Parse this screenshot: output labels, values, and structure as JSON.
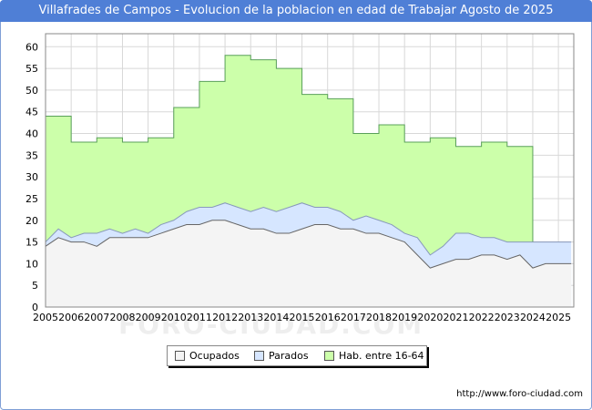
{
  "chart_data": {
    "type": "area",
    "title": "Villafrades de Campos - Evolucion de la poblacion en edad de Trabajar Agosto de 2025",
    "xlabel": "",
    "ylabel": "",
    "xlim": [
      2005,
      2025.6
    ],
    "ylim": [
      0,
      63
    ],
    "yticks": [
      0,
      5,
      10,
      15,
      20,
      25,
      30,
      35,
      40,
      45,
      50,
      55,
      60
    ],
    "xticks": [
      "2005",
      "2006",
      "2007",
      "2008",
      "2009",
      "2010",
      "2011",
      "2012",
      "2013",
      "2014",
      "2015",
      "2016",
      "2017",
      "2018",
      "2019",
      "2020",
      "2021",
      "2022",
      "2023",
      "2024",
      "2025"
    ],
    "grid": true,
    "legend_position": "bottom-center",
    "series": [
      {
        "name": "Hab. entre 16-64",
        "color": "#ccffaa",
        "stroke": "#5aa05a",
        "step": true,
        "x": [
          2005,
          2006,
          2007,
          2008,
          2009,
          2010,
          2011,
          2012,
          2013,
          2014,
          2015,
          2016,
          2017,
          2018,
          2019,
          2020,
          2021,
          2022,
          2023,
          2024
        ],
        "values": [
          44,
          38,
          39,
          38,
          39,
          46,
          52,
          58,
          57,
          55,
          49,
          48,
          40,
          42,
          38,
          39,
          37,
          38,
          37,
          0
        ]
      },
      {
        "name": "Parados",
        "color": "#d6e6ff",
        "stroke": "#8899bb",
        "x": [
          2005,
          2005.5,
          2006,
          2006.5,
          2007,
          2007.5,
          2008,
          2008.5,
          2009,
          2009.5,
          2010,
          2010.5,
          2011,
          2011.5,
          2012,
          2012.5,
          2013,
          2013.5,
          2014,
          2014.5,
          2015,
          2015.5,
          2016,
          2016.5,
          2017,
          2017.5,
          2018,
          2018.5,
          2019,
          2019.5,
          2020,
          2020.5,
          2021,
          2021.5,
          2022,
          2022.5,
          2023,
          2023.5,
          2024,
          2024.5,
          2025,
          2025.5
        ],
        "values": [
          15,
          18,
          16,
          17,
          17,
          18,
          17,
          18,
          17,
          19,
          20,
          22,
          23,
          23,
          24,
          23,
          22,
          23,
          22,
          23,
          24,
          23,
          23,
          22,
          20,
          21,
          20,
          19,
          17,
          16,
          12,
          14,
          17,
          17,
          16,
          16,
          15,
          15,
          15,
          15,
          15,
          15
        ]
      },
      {
        "name": "Ocupados",
        "color": "#f4f4f4",
        "stroke": "#666666",
        "x": [
          2005,
          2005.5,
          2006,
          2006.5,
          2007,
          2007.5,
          2008,
          2008.5,
          2009,
          2009.5,
          2010,
          2010.5,
          2011,
          2011.5,
          2012,
          2012.5,
          2013,
          2013.5,
          2014,
          2014.5,
          2015,
          2015.5,
          2016,
          2016.5,
          2017,
          2017.5,
          2018,
          2018.5,
          2019,
          2019.5,
          2020,
          2020.5,
          2021,
          2021.5,
          2022,
          2022.5,
          2023,
          2023.5,
          2024,
          2024.5,
          2025,
          2025.5
        ],
        "values": [
          14,
          16,
          15,
          15,
          14,
          16,
          16,
          16,
          16,
          17,
          18,
          19,
          19,
          20,
          20,
          19,
          18,
          18,
          17,
          17,
          18,
          19,
          19,
          18,
          18,
          17,
          17,
          16,
          15,
          12,
          9,
          10,
          11,
          11,
          12,
          12,
          11,
          12,
          9,
          10,
          10,
          10
        ]
      }
    ]
  },
  "legend": {
    "items": [
      {
        "label": "Ocupados",
        "color": "#f4f4f4"
      },
      {
        "label": "Parados",
        "color": "#d6e6ff"
      },
      {
        "label": "Hab. entre 16-64",
        "color": "#ccffaa"
      }
    ]
  },
  "footer": {
    "url": "http://www.foro-ciudad.com"
  },
  "watermark": "FORO-CIUDAD.COM"
}
